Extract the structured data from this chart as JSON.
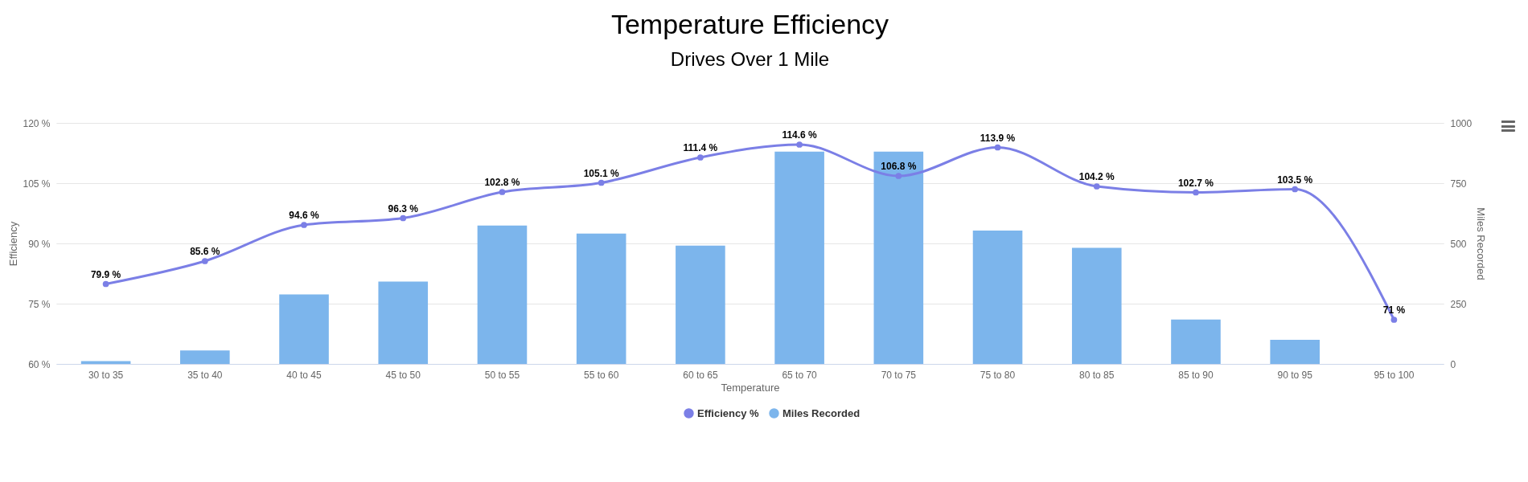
{
  "chart_data": {
    "type": "bar",
    "title": "Temperature Efficiency",
    "subtitle": "Drives Over 1 Mile",
    "xlabel": "Temperature",
    "ylabel": "Efficiency",
    "y2label": "Miles Recorded",
    "categories": [
      "30 to 35",
      "35 to 40",
      "40 to 45",
      "45 to 50",
      "50 to 55",
      "55 to 60",
      "60 to 65",
      "65 to 70",
      "70 to 75",
      "75 to 80",
      "80 to 85",
      "85 to 90",
      "90 to 95",
      "95 to 100"
    ],
    "series": [
      {
        "name": "Efficiency %",
        "type": "line",
        "axis": "y",
        "color": "#7b7fe6",
        "values": [
          79.9,
          85.6,
          94.6,
          96.3,
          102.8,
          105.1,
          111.4,
          114.6,
          106.8,
          113.9,
          104.2,
          102.7,
          103.5,
          71
        ],
        "value_labels": [
          "79.9 %",
          "85.6 %",
          "94.6 %",
          "96.3 %",
          "102.8 %",
          "105.1 %",
          "111.4 %",
          "114.6 %",
          "106.8 %",
          "113.9 %",
          "104.2 %",
          "102.7 %",
          "103.5 %",
          "71 %"
        ]
      },
      {
        "name": "Miles Recorded",
        "axis": "y2",
        "color": "#7cb5ec",
        "values": [
          12,
          56,
          288,
          342,
          574,
          541,
          491,
          881,
          881,
          553,
          482,
          184,
          100,
          null
        ]
      }
    ],
    "ylim": [
      60,
      120
    ],
    "yticks": [
      {
        "value": 60,
        "label": "60 %"
      },
      {
        "value": 75,
        "label": "75 %"
      },
      {
        "value": 90,
        "label": "90 %"
      },
      {
        "value": 105,
        "label": "105 %"
      },
      {
        "value": 120,
        "label": "120 %"
      }
    ],
    "y2lim": [
      0,
      1000
    ],
    "y2ticks": [
      0,
      250,
      500,
      750,
      1000
    ],
    "grid": "y",
    "legend": "bottom",
    "marker": "circle"
  }
}
